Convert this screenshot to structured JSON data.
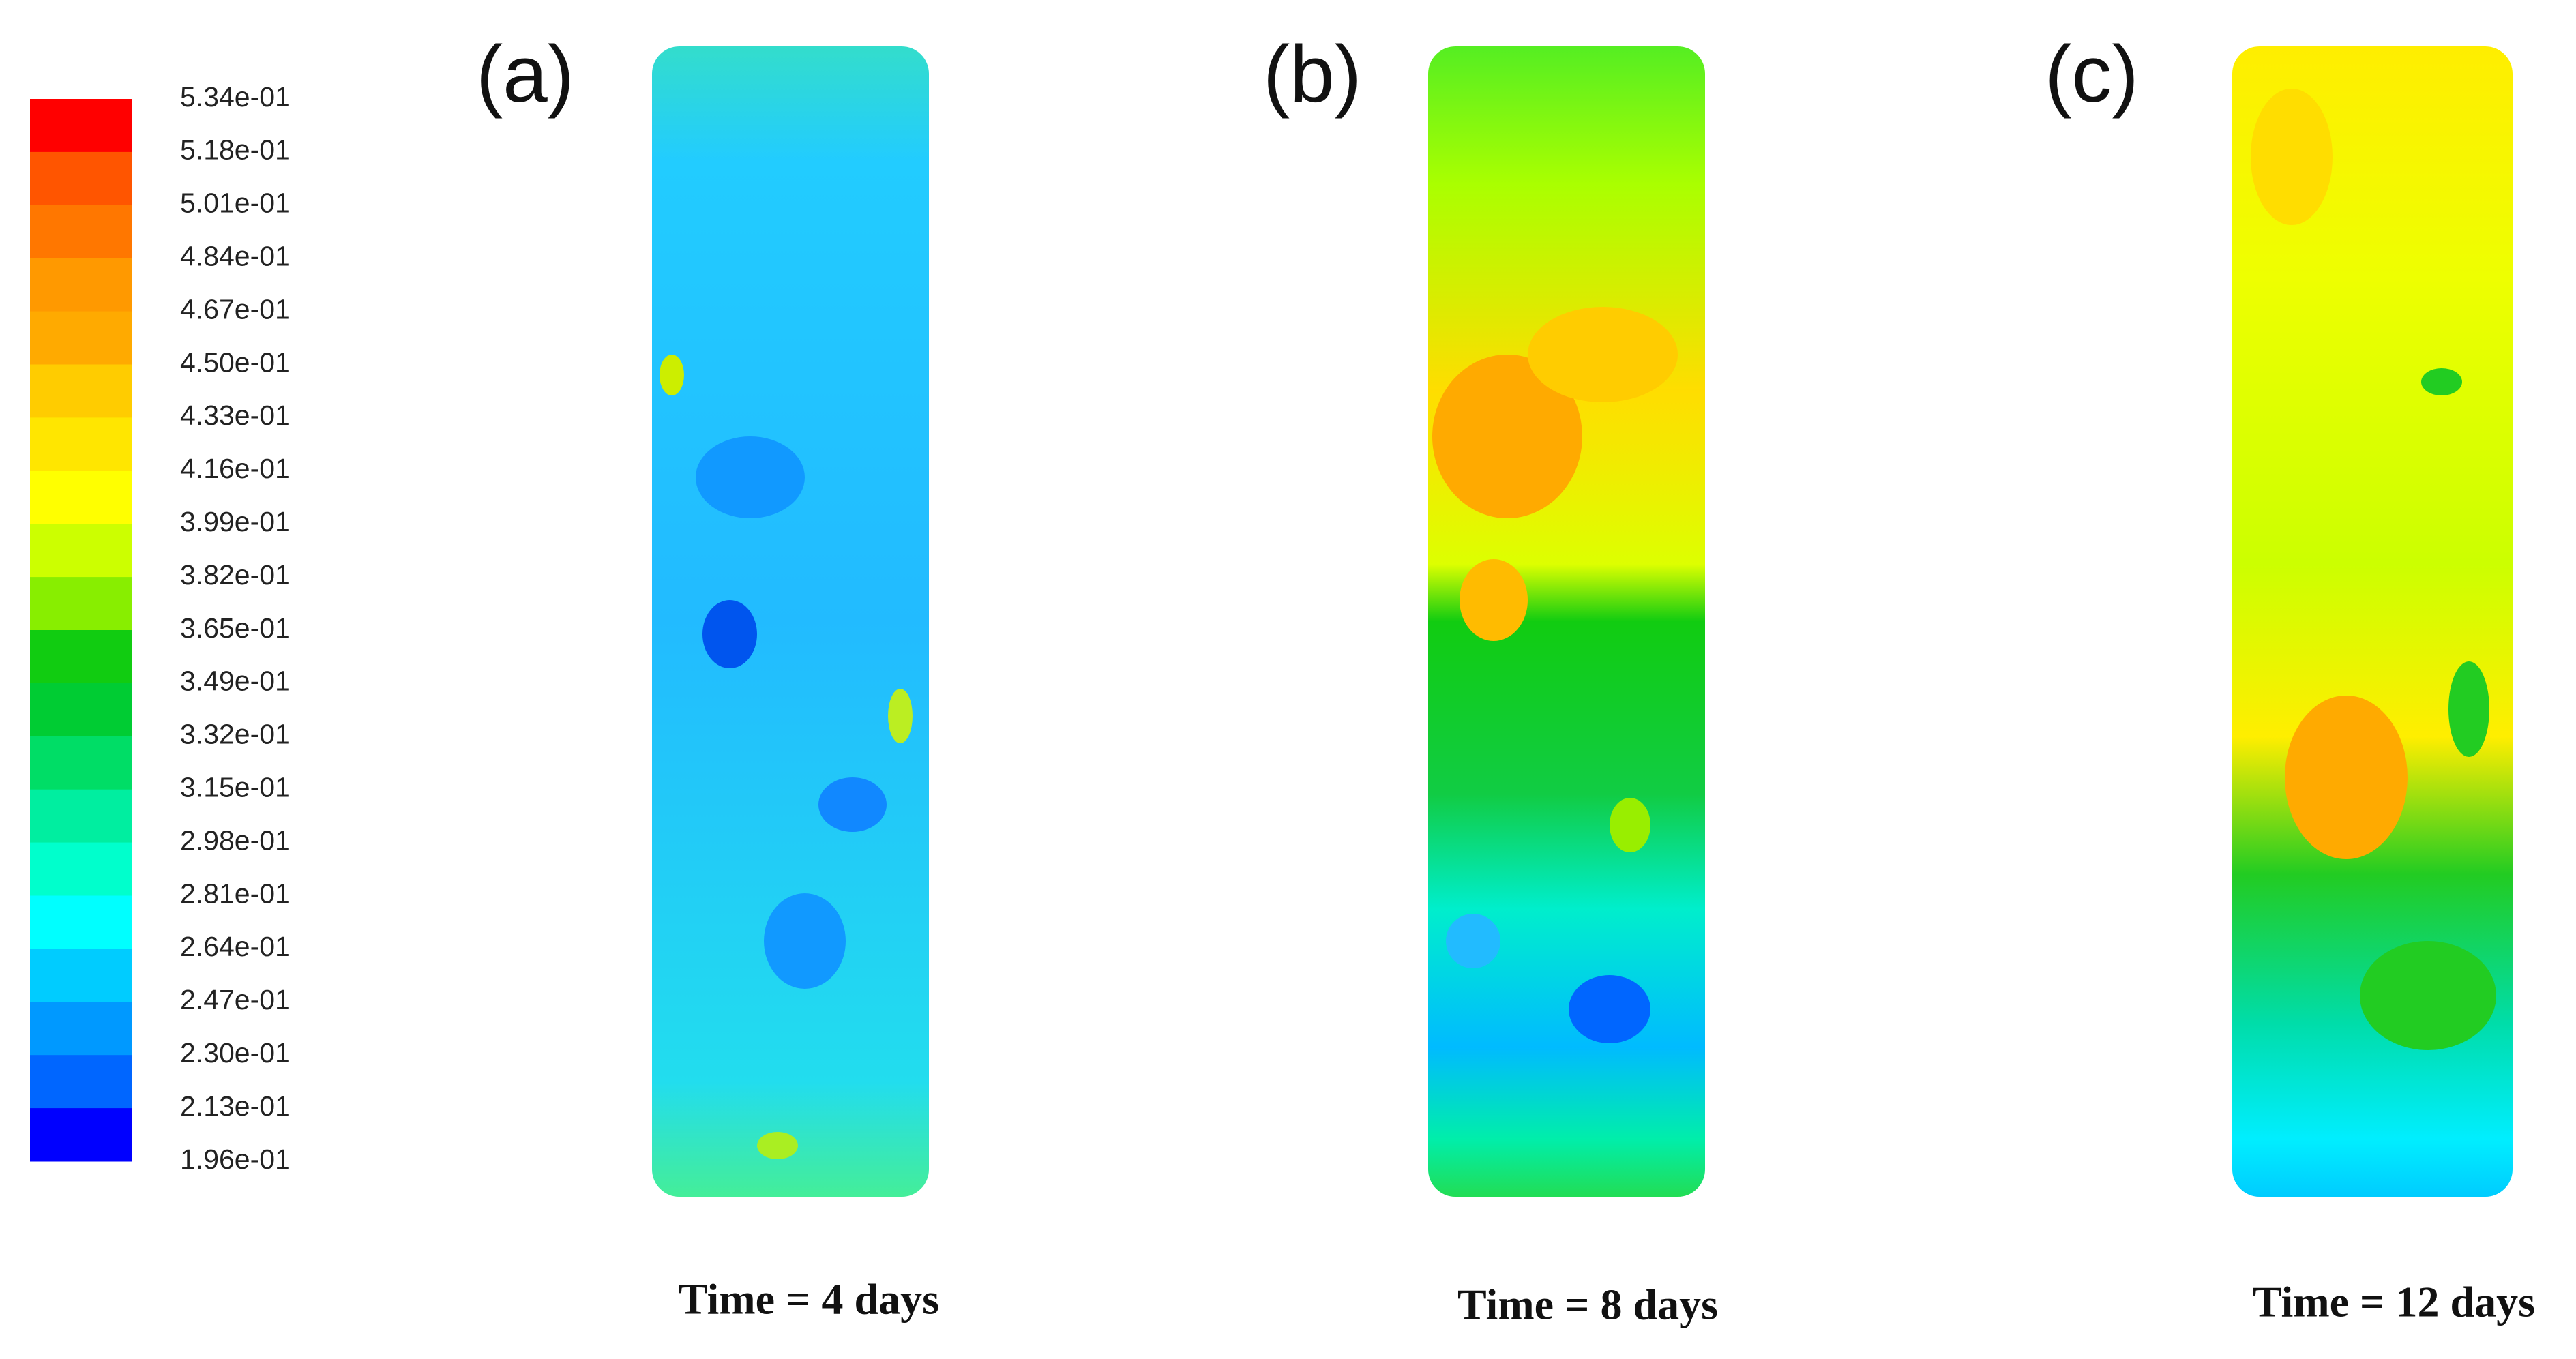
{
  "colorbar": {
    "labels": [
      "5.34e-01",
      "5.18e-01",
      "5.01e-01",
      "4.84e-01",
      "4.67e-01",
      "4.50e-01",
      "4.33e-01",
      "4.16e-01",
      "3.99e-01",
      "3.82e-01",
      "3.65e-01",
      "3.49e-01",
      "3.32e-01",
      "3.15e-01",
      "2.98e-01",
      "2.81e-01",
      "2.64e-01",
      "2.47e-01",
      "2.30e-01",
      "2.13e-01",
      "1.96e-01"
    ],
    "colors": [
      "#ff0000",
      "#ff5500",
      "#ff7700",
      "#ff9900",
      "#ffaa00",
      "#ffcc00",
      "#ffe600",
      "#ffff00",
      "#ccff00",
      "#88ee00",
      "#11cc11",
      "#00cc33",
      "#00dd66",
      "#00eea0",
      "#00ffcc",
      "#00ffff",
      "#00ccff",
      "#0099ff",
      "#0066ff",
      "#0000ff"
    ]
  },
  "panels": [
    {
      "label": "(a)",
      "caption": "Time = 4 days"
    },
    {
      "label": "(b)",
      "caption": "Time = 8 days"
    },
    {
      "label": "(c)",
      "caption": "Time = 12 days"
    }
  ]
}
